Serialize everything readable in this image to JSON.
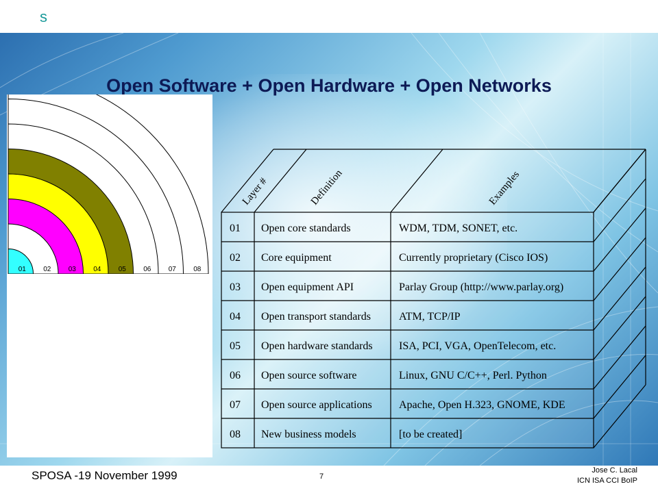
{
  "header": {
    "logo": "s"
  },
  "slide": {
    "title": "Open Software + Open Hardware + Open Networks"
  },
  "diagram": {
    "layer_labels": [
      "01",
      "02",
      "03",
      "04",
      "05",
      "06",
      "07",
      "08"
    ],
    "band_colors": [
      "#33ffff",
      "#ffffff",
      "#ff00ff",
      "#ffff00",
      "#808000",
      "#ffffff",
      "#ffffff",
      "#ffffff"
    ]
  },
  "table": {
    "headers": {
      "layer": "Layer #",
      "definition": "Definition",
      "examples": "Examples"
    },
    "rows": [
      {
        "layer": "01",
        "definition": "Open core standards",
        "examples": "WDM, TDM, SONET, etc."
      },
      {
        "layer": "02",
        "definition": "Core equipment",
        "examples": "Currently proprietary (Cisco IOS)"
      },
      {
        "layer": "03",
        "definition": "Open equipment API",
        "examples": "Parlay Group (http://www.parlay.org)"
      },
      {
        "layer": "04",
        "definition": "Open transport standards",
        "examples": "ATM, TCP/IP"
      },
      {
        "layer": "05",
        "definition": "Open hardware standards",
        "examples": "ISA, PCI, VGA, OpenTelecom, etc."
      },
      {
        "layer": "06",
        "definition": "Open source software",
        "examples": "Linux, GNU C/C++, Perl. Python"
      },
      {
        "layer": "07",
        "definition": "Open source applications",
        "examples": "Apache, Open H.323, GNOME, KDE"
      },
      {
        "layer": "08",
        "definition": "New business models",
        "examples": "[to be created]"
      }
    ]
  },
  "footer": {
    "left": "SPOSA -19 November 1999",
    "page": "7",
    "author": "Jose C. Lacal",
    "org": "ICN ISA CCI BoIP"
  }
}
